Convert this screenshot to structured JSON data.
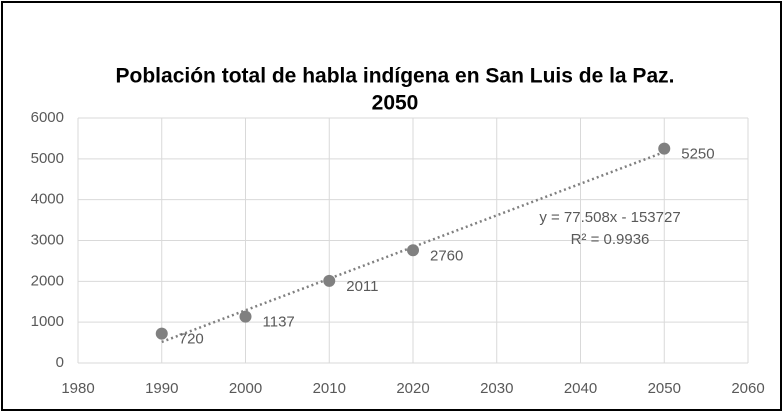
{
  "chart_data": {
    "type": "scatter",
    "title": [
      "Población total de habla indígena en San Luis de la Paz.",
      "2050"
    ],
    "x": [
      1990,
      2000,
      2010,
      2020,
      2050
    ],
    "values": [
      720,
      1137,
      2011,
      2760,
      5250
    ],
    "color": "#808080",
    "trendline": true,
    "annotations": [
      "y = 77.508x - 153727",
      "R² = 0.9936"
    ],
    "xlim": [
      1980,
      2060
    ],
    "xticks": [
      1980,
      1990,
      2000,
      2010,
      2020,
      2030,
      2040,
      2050,
      2060
    ],
    "ylim": [
      0,
      6000
    ],
    "yticks": [
      0,
      1000,
      2000,
      3000,
      4000,
      5000,
      6000
    ],
    "grid": true
  }
}
